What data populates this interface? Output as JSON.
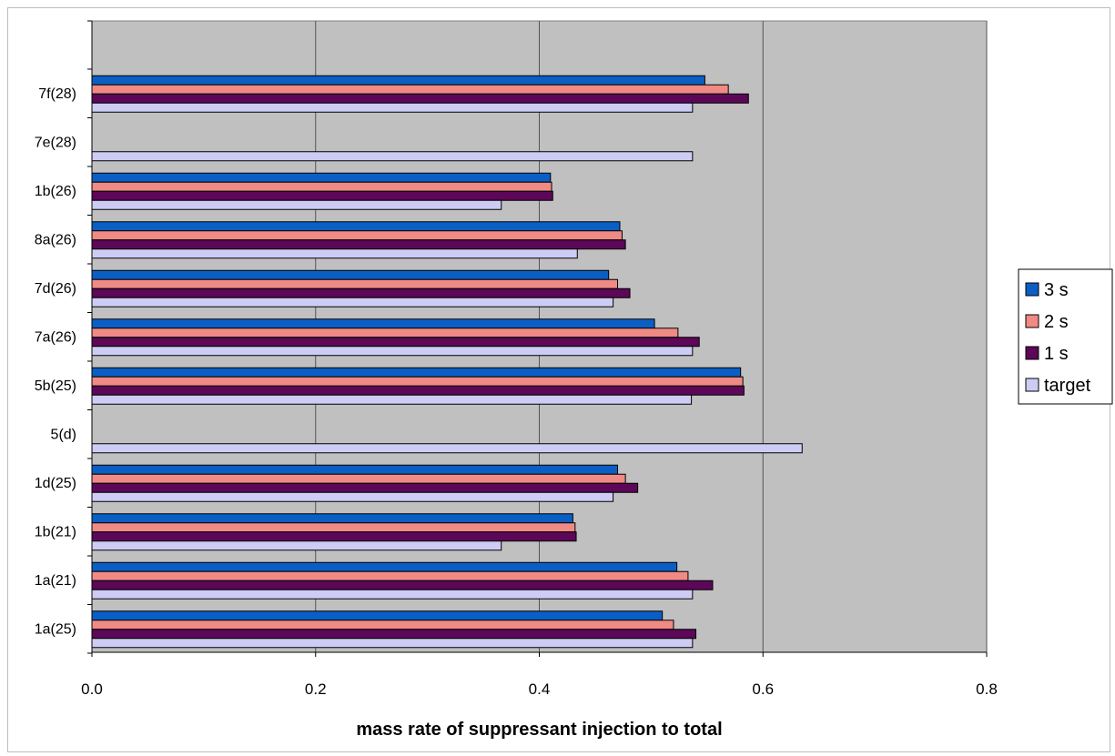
{
  "chart_data": {
    "type": "bar",
    "orientation": "horizontal",
    "title": "",
    "xlabel": "mass rate of suppressant injection to total",
    "ylabel": "",
    "xlim": [
      0,
      0.8
    ],
    "xticks": [
      "0.0",
      "0.2",
      "0.4",
      "0.6",
      "0.8"
    ],
    "grid": true,
    "legend_position": "right",
    "categories": [
      "7f(28)",
      "7e(28)",
      "1b(26)",
      "8a(26)",
      "7d(26)",
      "7a(26)",
      "5b(25)",
      "5(d)",
      "1d(25)",
      "1b(21)",
      "1a(21)",
      "1a(25)"
    ],
    "series": [
      {
        "name": "3 s",
        "color": "#0b5fc4",
        "values": [
          0.548,
          null,
          0.41,
          0.472,
          0.462,
          0.503,
          0.58,
          null,
          0.47,
          0.43,
          0.523,
          0.51
        ]
      },
      {
        "name": "2 s",
        "color": "#f08a84",
        "values": [
          0.569,
          null,
          0.411,
          0.474,
          0.47,
          0.524,
          0.582,
          null,
          0.477,
          0.432,
          0.533,
          0.52
        ]
      },
      {
        "name": "1 s",
        "color": "#5c0758",
        "values": [
          0.587,
          null,
          0.412,
          0.477,
          0.481,
          0.543,
          0.583,
          null,
          0.488,
          0.433,
          0.555,
          0.54
        ]
      },
      {
        "name": "target",
        "color": "#ccccf5",
        "values": [
          0.537,
          0.537,
          0.366,
          0.434,
          0.466,
          0.537,
          0.536,
          0.635,
          0.466,
          0.366,
          0.537,
          0.537
        ]
      }
    ]
  },
  "colors": {
    "plot_background": "#c0c0c0",
    "gridline": "#555555",
    "bar_border": "#000000"
  }
}
